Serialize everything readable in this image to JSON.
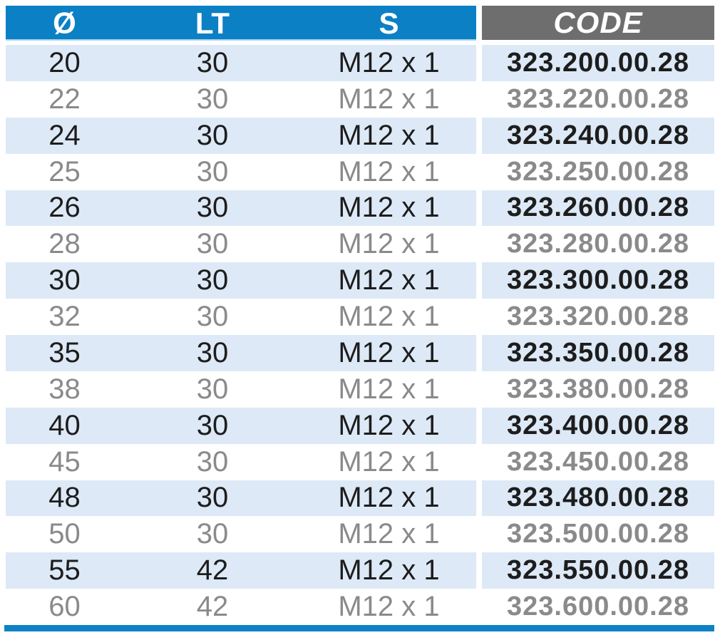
{
  "table": {
    "headers": [
      {
        "label": "Ø"
      },
      {
        "label": "LT"
      },
      {
        "label": "S"
      },
      {
        "label": "CODE"
      }
    ],
    "rows": [
      {
        "diameter": "20",
        "lt": "30",
        "s": "M12 x 1",
        "code": "323.200.00.28",
        "emphasis": "dark"
      },
      {
        "diameter": "22",
        "lt": "30",
        "s": "M12 x 1",
        "code": "323.220.00.28",
        "emphasis": "gray"
      },
      {
        "diameter": "24",
        "lt": "30",
        "s": "M12 x 1",
        "code": "323.240.00.28",
        "emphasis": "dark"
      },
      {
        "diameter": "25",
        "lt": "30",
        "s": "M12 x 1",
        "code": "323.250.00.28",
        "emphasis": "gray"
      },
      {
        "diameter": "26",
        "lt": "30",
        "s": "M12 x 1",
        "code": "323.260.00.28",
        "emphasis": "dark"
      },
      {
        "diameter": "28",
        "lt": "30",
        "s": "M12 x 1",
        "code": "323.280.00.28",
        "emphasis": "gray"
      },
      {
        "diameter": "30",
        "lt": "30",
        "s": "M12 x 1",
        "code": "323.300.00.28",
        "emphasis": "dark"
      },
      {
        "diameter": "32",
        "lt": "30",
        "s": "M12 x 1",
        "code": "323.320.00.28",
        "emphasis": "gray"
      },
      {
        "diameter": "35",
        "lt": "30",
        "s": "M12 x 1",
        "code": "323.350.00.28",
        "emphasis": "dark"
      },
      {
        "diameter": "38",
        "lt": "30",
        "s": "M12 x 1",
        "code": "323.380.00.28",
        "emphasis": "gray"
      },
      {
        "diameter": "40",
        "lt": "30",
        "s": "M12 x 1",
        "code": "323.400.00.28",
        "emphasis": "dark"
      },
      {
        "diameter": "45",
        "lt": "30",
        "s": "M12 x 1",
        "code": "323.450.00.28",
        "emphasis": "gray"
      },
      {
        "diameter": "48",
        "lt": "30",
        "s": "M12 x 1",
        "code": "323.480.00.28",
        "emphasis": "dark"
      },
      {
        "diameter": "50",
        "lt": "30",
        "s": "M12 x 1",
        "code": "323.500.00.28",
        "emphasis": "gray"
      },
      {
        "diameter": "55",
        "lt": "42",
        "s": "M12 x 1",
        "code": "323.550.00.28",
        "emphasis": "dark"
      },
      {
        "diameter": "60",
        "lt": "42",
        "s": "M12 x 1",
        "code": "323.600.00.28",
        "emphasis": "gray"
      }
    ]
  },
  "colors": {
    "header_blue": "#0b80c4",
    "header_gray": "#6e6e6e",
    "header_underline_blue": "#a9d3ee",
    "header_text": "#ffffff",
    "row_light_blue": "#dde9f6",
    "row_white": "#ffffff",
    "text_dark": "#1d1d1d",
    "text_gray": "#8a8a8a",
    "bottom_bar_blue": "#0e81c6"
  }
}
